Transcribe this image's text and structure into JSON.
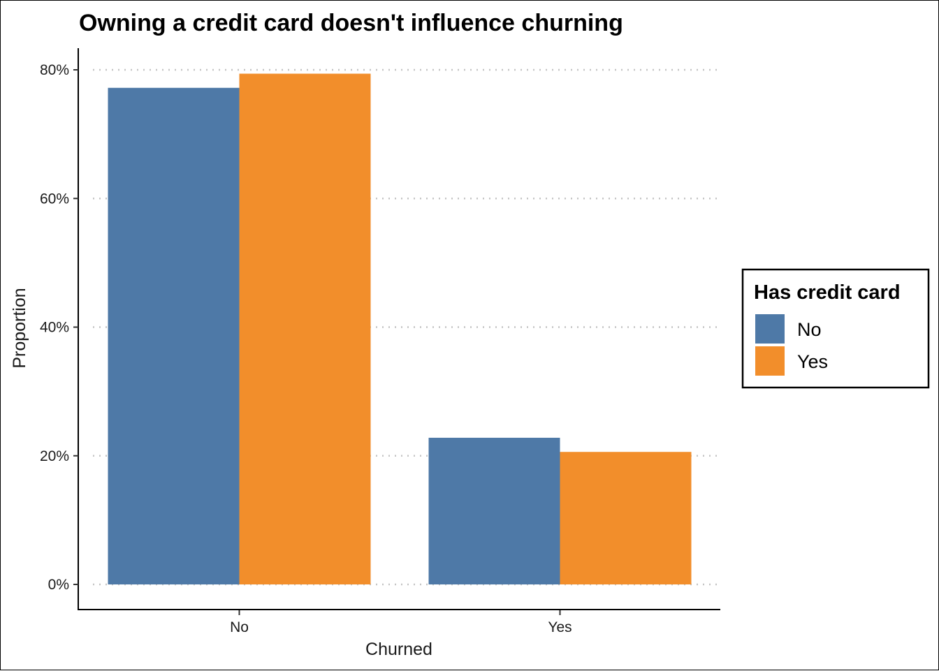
{
  "chart_data": {
    "type": "bar",
    "title": "Owning a credit card doesn't influence churning",
    "xlabel": "Churned",
    "ylabel": "Proportion",
    "categories": [
      "No",
      "Yes"
    ],
    "series": [
      {
        "name": "No",
        "color": "#4e79a7",
        "values": [
          0.772,
          0.228
        ]
      },
      {
        "name": "Yes",
        "color": "#f28e2b",
        "values": [
          0.794,
          0.206
        ]
      }
    ],
    "ylim": [
      0,
      0.8
    ],
    "yticks": [
      {
        "value": 0,
        "label": "0%"
      },
      {
        "value": 0.2,
        "label": "20%"
      },
      {
        "value": 0.4,
        "label": "40%"
      },
      {
        "value": 0.6,
        "label": "60%"
      },
      {
        "value": 0.8,
        "label": "80%"
      }
    ],
    "grid": "horizontal dotted",
    "legend": {
      "title": "Has credit card",
      "placement": "right"
    }
  }
}
